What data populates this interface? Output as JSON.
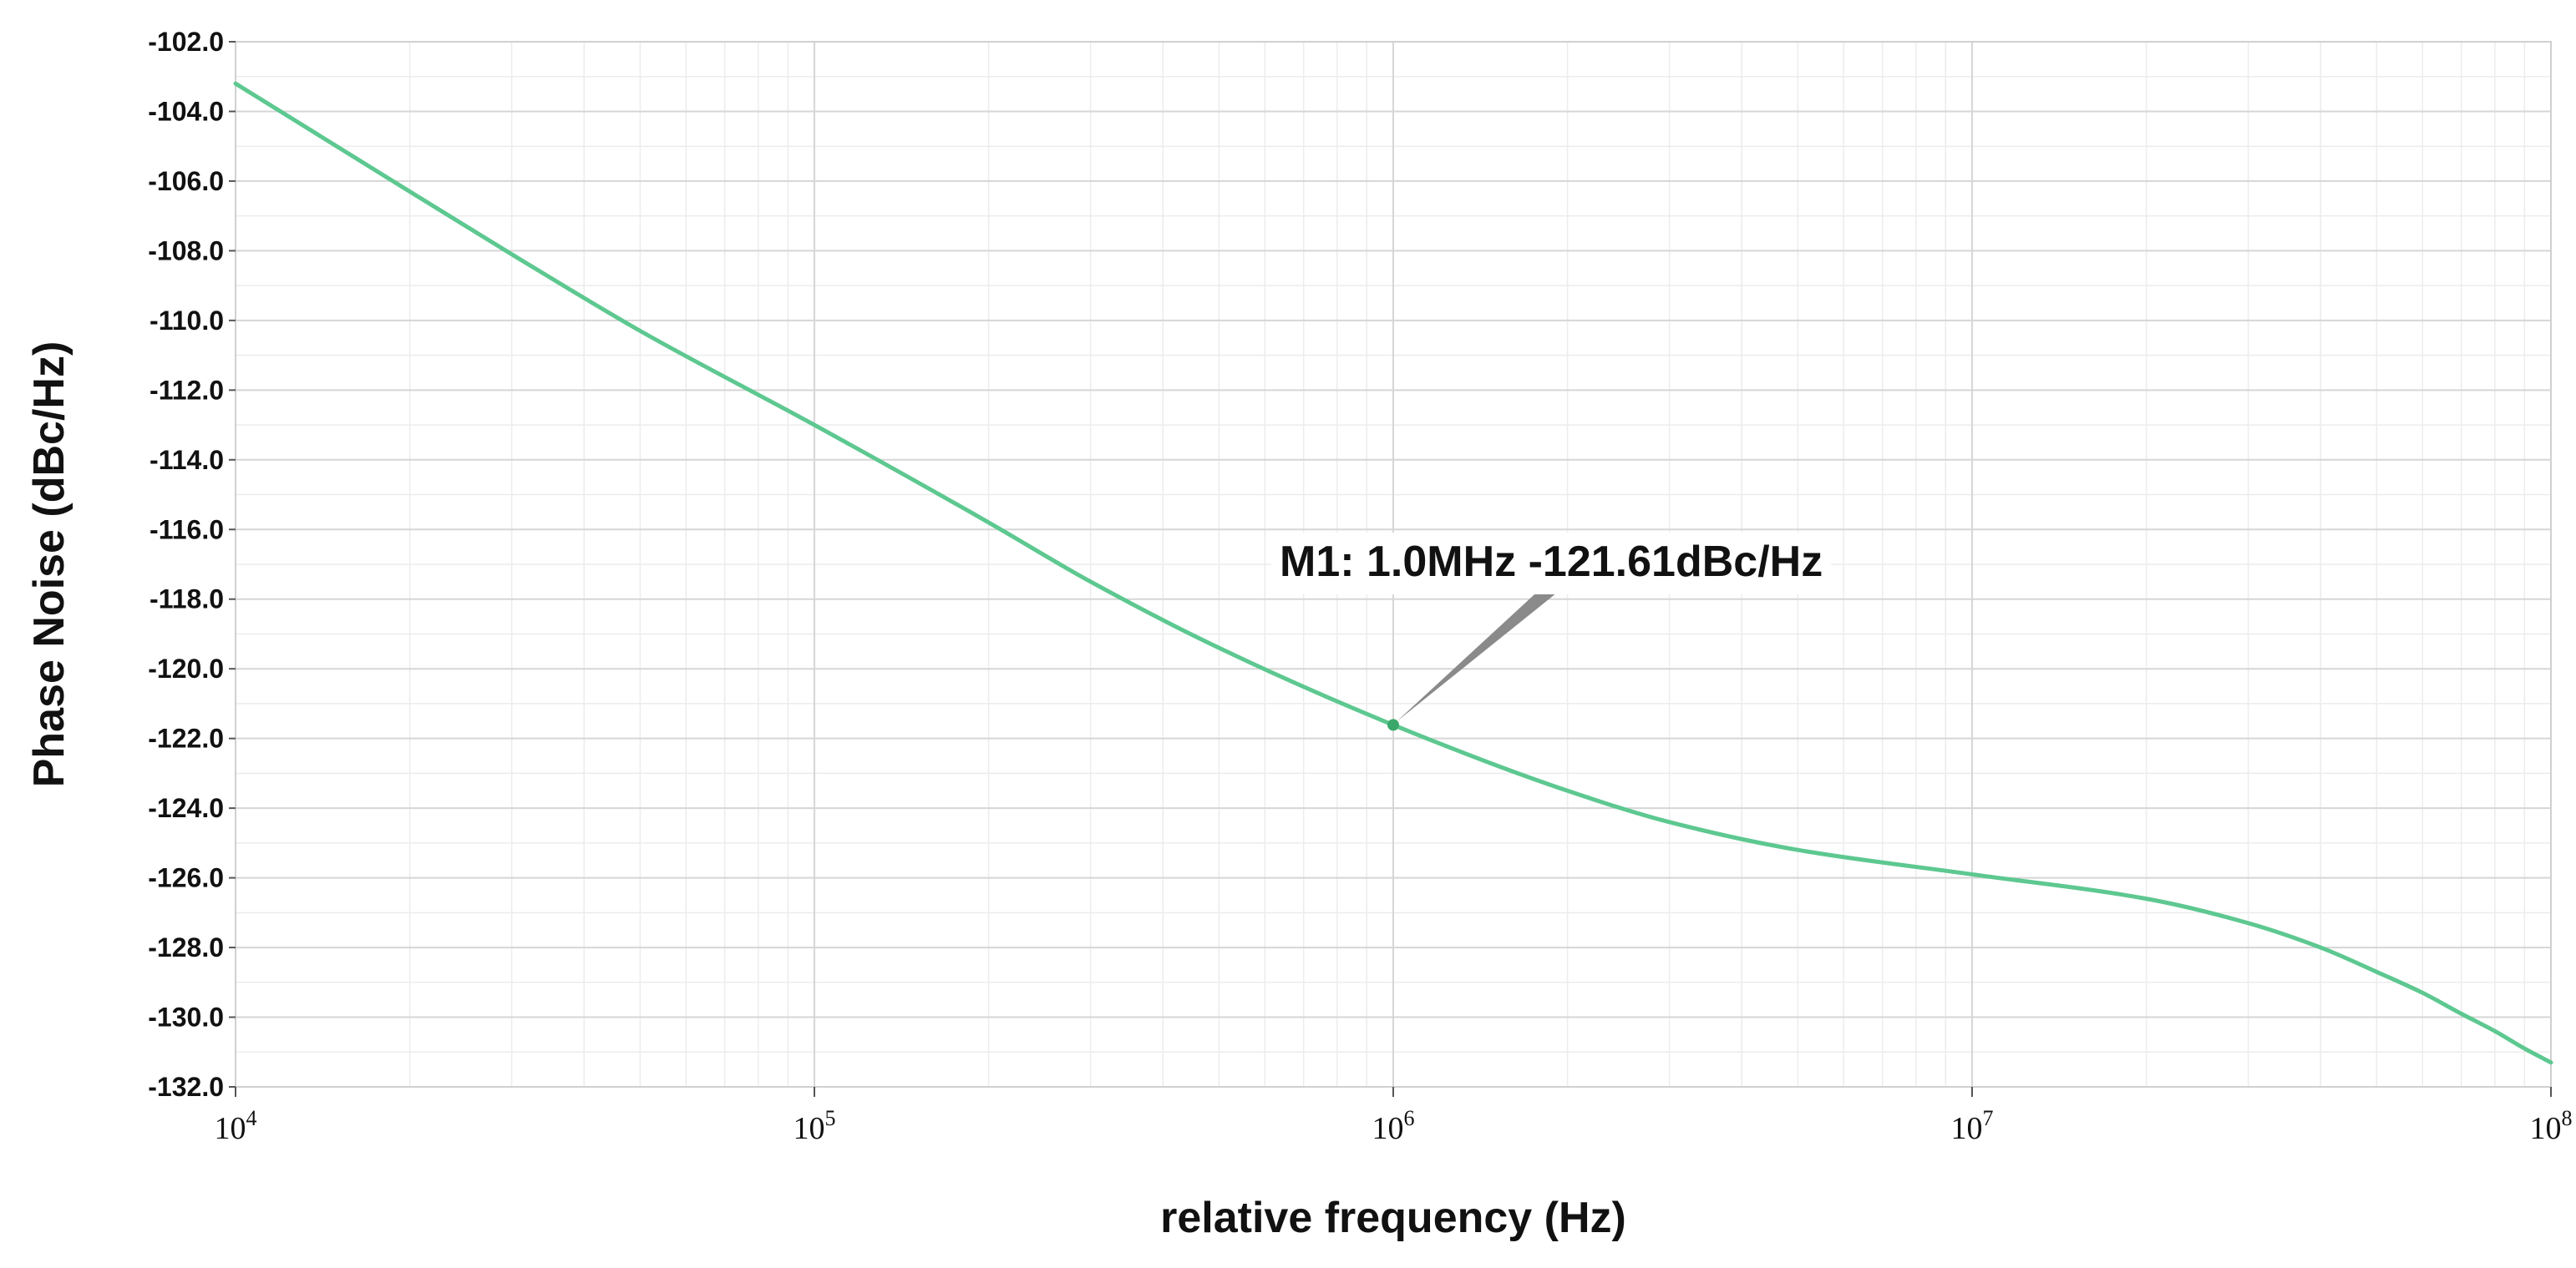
{
  "chart_data": {
    "type": "line",
    "title": "",
    "xlabel": "relative frequency (Hz)",
    "ylabel": "Phase Noise (dBc/Hz)",
    "x_scale": "log",
    "xlim": [
      10000,
      100000000
    ],
    "ylim": [
      -132.0,
      -102.0
    ],
    "y_ticks": [
      "-102.0",
      "-104.0",
      "-106.0",
      "-108.0",
      "-110.0",
      "-112.0",
      "-114.0",
      "-116.0",
      "-118.0",
      "-120.0",
      "-122.0",
      "-124.0",
      "-126.0",
      "-128.0",
      "-130.0",
      "-132.0"
    ],
    "x_ticks": [
      {
        "base": "10",
        "exp": "4",
        "value": 10000
      },
      {
        "base": "10",
        "exp": "5",
        "value": 100000
      },
      {
        "base": "10",
        "exp": "6",
        "value": 1000000
      },
      {
        "base": "10",
        "exp": "7",
        "value": 10000000
      },
      {
        "base": "10",
        "exp": "8",
        "value": 100000000
      }
    ],
    "grid": true,
    "colors": {
      "series": "#5dc890",
      "grid_major": "#d6d6d6",
      "grid_minor": "#ececec",
      "marker": "#3aa86a",
      "annotation_line": "#8a8a8a"
    },
    "series": [
      {
        "x": [
          10000,
          20000,
          30000,
          50000,
          100000,
          200000,
          300000,
          500000,
          1000000,
          2000000,
          3000000,
          5000000,
          10000000,
          20000000,
          30000000,
          40000000,
          50000000,
          60000000,
          70000000,
          80000000,
          90000000,
          100000000
        ],
        "y": [
          -103.2,
          -106.3,
          -108.1,
          -110.3,
          -113.0,
          -115.8,
          -117.5,
          -119.4,
          -121.61,
          -123.5,
          -124.4,
          -125.2,
          -125.9,
          -126.6,
          -127.3,
          -128.0,
          -128.7,
          -129.3,
          -129.9,
          -130.4,
          -130.9,
          -131.3
        ]
      }
    ],
    "marker": {
      "label": "M1: 1.0MHz -121.61dBc/Hz",
      "x": 1000000,
      "y": -121.61
    }
  }
}
